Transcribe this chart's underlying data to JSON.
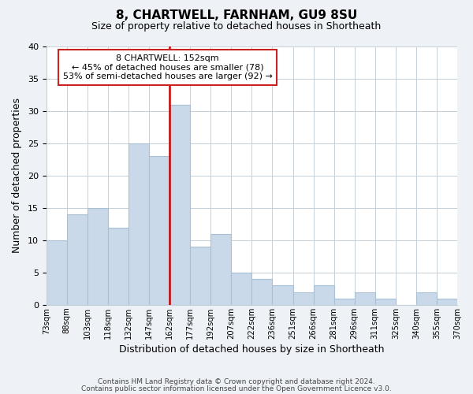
{
  "title1": "8, CHARTWELL, FARNHAM, GU9 8SU",
  "title2": "Size of property relative to detached houses in Shortheath",
  "xlabel": "Distribution of detached houses by size in Shortheath",
  "ylabel": "Number of detached properties",
  "bin_labels": [
    "73sqm",
    "88sqm",
    "103sqm",
    "118sqm",
    "132sqm",
    "147sqm",
    "162sqm",
    "177sqm",
    "192sqm",
    "207sqm",
    "222sqm",
    "236sqm",
    "251sqm",
    "266sqm",
    "281sqm",
    "296sqm",
    "311sqm",
    "325sqm",
    "340sqm",
    "355sqm",
    "370sqm"
  ],
  "bar_heights": [
    10,
    14,
    15,
    12,
    25,
    23,
    31,
    9,
    11,
    5,
    4,
    3,
    2,
    3,
    1,
    2,
    1,
    0,
    2,
    1
  ],
  "bar_color": "#c9d9ea",
  "bar_edge_color": "#a8bfd4",
  "vline_x": 5.5,
  "vline_color": "#cc0000",
  "annotation_title": "8 CHARTWELL: 152sqm",
  "annotation_line1": "← 45% of detached houses are smaller (78)",
  "annotation_line2": "53% of semi-detached houses are larger (92) →",
  "annotation_box_color": "#ffffff",
  "annotation_box_edge": "#cc2222",
  "ylim": [
    0,
    40
  ],
  "yticks": [
    0,
    5,
    10,
    15,
    20,
    25,
    30,
    35,
    40
  ],
  "footer1": "Contains HM Land Registry data © Crown copyright and database right 2024.",
  "footer2": "Contains public sector information licensed under the Open Government Licence v3.0.",
  "bg_color": "#eef2f7",
  "plot_bg_color": "#ffffff"
}
